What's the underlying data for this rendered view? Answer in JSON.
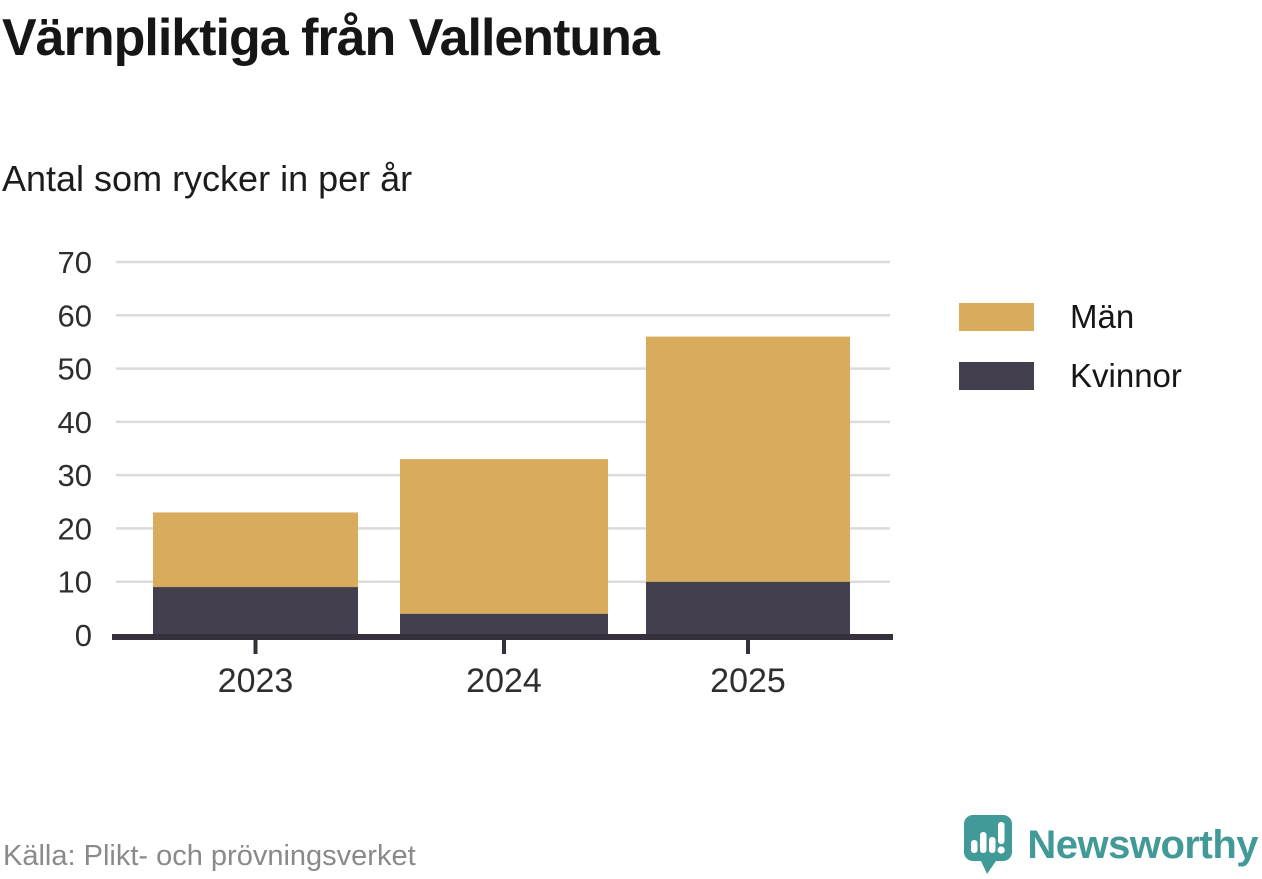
{
  "page": {
    "title": "Värnpliktiga från Vallentuna",
    "subtitle": "Antal som rycker in per år",
    "source": "Källa: Plikt- och prövningsverket",
    "brand": "Newsworthy"
  },
  "colors": {
    "men": "#D9AB5C",
    "women": "#433F4F",
    "axis": "#34313C",
    "grid": "#DBDBDB",
    "tick_label": "#2E2E2E",
    "source_text": "#8A8A8A",
    "brand_teal": "#429A98"
  },
  "legend": {
    "items": [
      {
        "label": "Män",
        "color": "#D9AB5C"
      },
      {
        "label": "Kvinnor",
        "color": "#433F4F"
      }
    ]
  },
  "chart_data": {
    "type": "bar",
    "stacked": true,
    "title": "Värnpliktiga från Vallentuna",
    "subtitle": "Antal som rycker in per år",
    "categories": [
      "2023",
      "2024",
      "2025"
    ],
    "series": [
      {
        "name": "Kvinnor",
        "color": "#433F4F",
        "values": [
          9,
          4,
          10
        ]
      },
      {
        "name": "Män",
        "color": "#D9AB5C",
        "values": [
          14,
          29,
          46
        ]
      }
    ],
    "stack_totals": [
      23,
      33,
      56
    ],
    "xlabel": "",
    "ylabel": "",
    "yticks": [
      0,
      10,
      20,
      30,
      40,
      50,
      60,
      70
    ],
    "ylim": [
      0,
      70
    ],
    "grid": "horizontal",
    "legend_position": "right",
    "source": "Källa: Plikt- och prövningsverket"
  }
}
